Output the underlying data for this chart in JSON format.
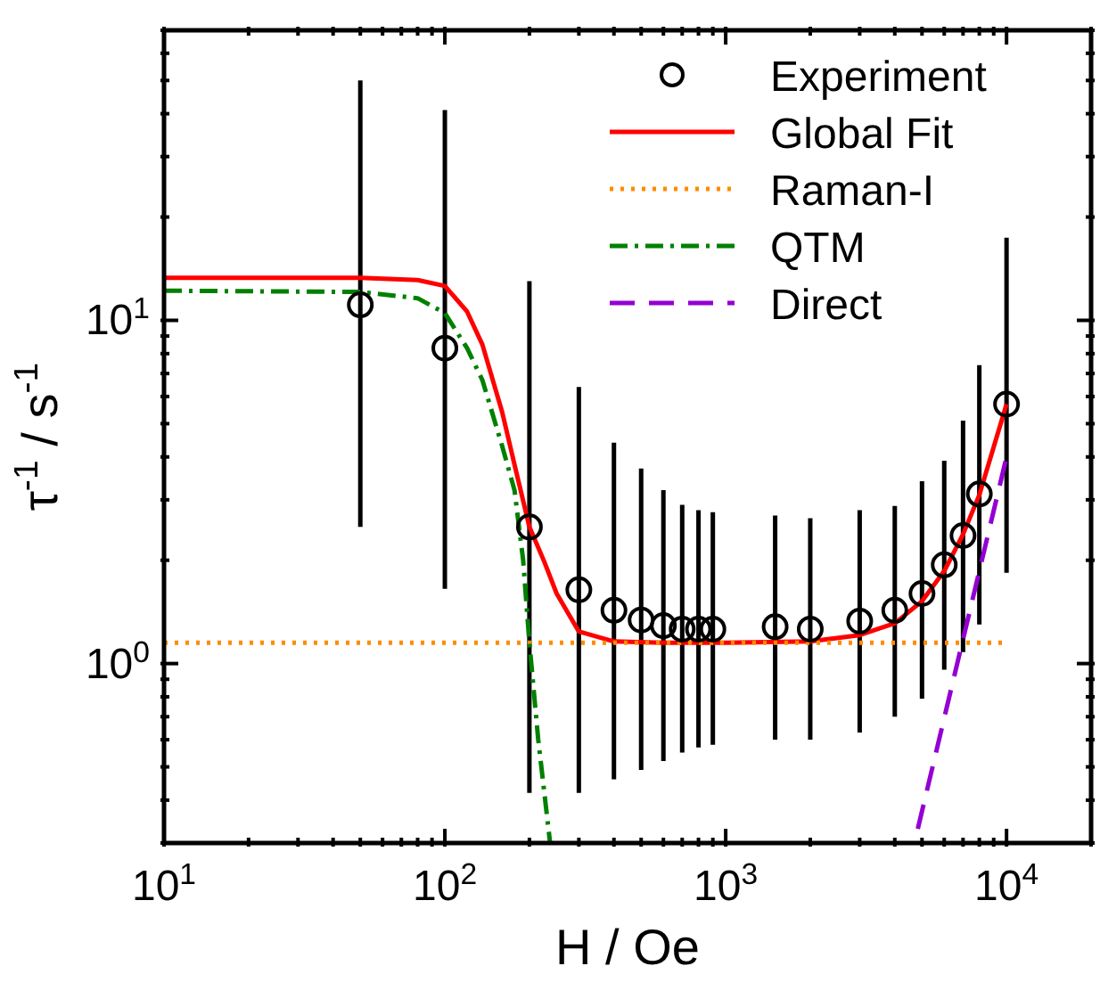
{
  "chart_data": {
    "type": "line",
    "xlabel": "H / Oe",
    "ylabel": "τ$^{-1}$ / s$^{-1}$",
    "log": "xy",
    "grid": false,
    "legend": "top right",
    "xlim": [
      10,
      20000
    ],
    "xticks": [
      {
        "value": 10,
        "label": "10$^{1}$"
      },
      {
        "value": 20,
        "label": null
      },
      {
        "value": 30,
        "label": null
      },
      {
        "value": 40,
        "label": null
      },
      {
        "value": 50,
        "label": null
      },
      {
        "value": 60,
        "label": null
      },
      {
        "value": 70,
        "label": null
      },
      {
        "value": 80,
        "label": null
      },
      {
        "value": 90,
        "label": null
      },
      {
        "value": 100,
        "label": "10$^{2}$"
      },
      {
        "value": 200,
        "label": null
      },
      {
        "value": 300,
        "label": null
      },
      {
        "value": 400,
        "label": null
      },
      {
        "value": 500,
        "label": null
      },
      {
        "value": 600,
        "label": null
      },
      {
        "value": 700,
        "label": null
      },
      {
        "value": 800,
        "label": null
      },
      {
        "value": 900,
        "label": null
      },
      {
        "value": 1000,
        "label": "10$^{3}$"
      },
      {
        "value": 2000,
        "label": null
      },
      {
        "value": 3000,
        "label": null
      },
      {
        "value": 4000,
        "label": null
      },
      {
        "value": 5000,
        "label": null
      },
      {
        "value": 6000,
        "label": null
      },
      {
        "value": 7000,
        "label": null
      },
      {
        "value": 8000,
        "label": null
      },
      {
        "value": 9000,
        "label": null
      },
      {
        "value": 10000,
        "label": "10$^{4}$"
      },
      {
        "value": 20000,
        "label": null
      }
    ],
    "ylim": [
      0.3,
      70
    ],
    "yticks": [
      {
        "value": 0.3,
        "label": null
      },
      {
        "value": 0.4,
        "label": null
      },
      {
        "value": 0.5,
        "label": null
      },
      {
        "value": 0.6,
        "label": null
      },
      {
        "value": 0.7,
        "label": null
      },
      {
        "value": 0.8,
        "label": null
      },
      {
        "value": 0.9,
        "label": null
      },
      {
        "value": 1,
        "label": "10$^{0}$"
      },
      {
        "value": 2,
        "label": null
      },
      {
        "value": 3,
        "label": null
      },
      {
        "value": 4,
        "label": null
      },
      {
        "value": 5,
        "label": null
      },
      {
        "value": 6,
        "label": null
      },
      {
        "value": 7,
        "label": null
      },
      {
        "value": 8,
        "label": null
      },
      {
        "value": 9,
        "label": null
      },
      {
        "value": 10,
        "label": "10$^{1}$"
      },
      {
        "value": 20,
        "label": null
      },
      {
        "value": 30,
        "label": null
      },
      {
        "value": 40,
        "label": null
      },
      {
        "value": 50,
        "label": null
      },
      {
        "value": 60,
        "label": null
      },
      {
        "value": 70,
        "label": null
      }
    ],
    "series": [
      {
        "name": "Experiment",
        "type": "scatter",
        "marker": "circle",
        "color": "#000000",
        "x": [
          50,
          100,
          200,
          300,
          400,
          500,
          600,
          700,
          800,
          900,
          1500,
          2000,
          3000,
          4000,
          5000,
          6000,
          7000,
          8000,
          10000
        ],
        "values": [
          11.1,
          8.3,
          2.5,
          1.64,
          1.43,
          1.34,
          1.29,
          1.26,
          1.26,
          1.26,
          1.28,
          1.26,
          1.33,
          1.43,
          1.6,
          1.94,
          2.36,
          3.12,
          5.7
        ],
        "errors": [
          [
            2.5,
            50
          ],
          [
            1.65,
            41
          ],
          [
            0.42,
            13
          ],
          [
            0.42,
            6.4
          ],
          [
            0.46,
            4.4
          ],
          [
            0.49,
            3.7
          ],
          [
            0.52,
            3.2
          ],
          [
            0.55,
            2.9
          ],
          [
            0.57,
            2.8
          ],
          [
            0.58,
            2.76
          ],
          [
            0.6,
            2.7
          ],
          [
            0.6,
            2.65
          ],
          [
            0.63,
            2.8
          ],
          [
            0.7,
            2.88
          ],
          [
            0.79,
            3.4
          ],
          [
            0.96,
            3.9
          ],
          [
            1.08,
            5.1
          ],
          [
            1.3,
            7.4
          ],
          [
            1.84,
            17.4
          ]
        ]
      },
      {
        "name": "Global Fit",
        "marker": "none",
        "line_style": "solid",
        "color": "#ff0000",
        "x": [
          10,
          50,
          80,
          100,
          120,
          136,
          160,
          177,
          200,
          226,
          250,
          300,
          400,
          600,
          1000,
          2000,
          3000,
          4000,
          5000,
          6000,
          7000,
          8000,
          10000
        ],
        "values": [
          13.3,
          13.3,
          13.1,
          12.6,
          10.6,
          8.5,
          5.4,
          3.8,
          2.5,
          1.98,
          1.6,
          1.24,
          1.16,
          1.15,
          1.15,
          1.16,
          1.21,
          1.31,
          1.52,
          1.86,
          2.38,
          3.1,
          5.7
        ]
      },
      {
        "name": "Raman-I",
        "marker": "none",
        "line_style": "dotted",
        "color": "#ff8c00",
        "x": [
          10,
          10000
        ],
        "values": [
          1.15,
          1.15
        ]
      },
      {
        "name": "QTM",
        "marker": "none",
        "line_style": "dashdot",
        "color": "#008000",
        "x": [
          10,
          50,
          80,
          100,
          120,
          136,
          160,
          177,
          190,
          200,
          215,
          237
        ],
        "values": [
          12.2,
          12.1,
          11.6,
          10.5,
          8.3,
          6.7,
          4.3,
          3.2,
          2.0,
          1.15,
          0.6,
          0.3
        ]
      },
      {
        "name": "Direct",
        "marker": "none",
        "line_style": "dashed",
        "color": "#9400d3",
        "x": [
          4830,
          10000
        ],
        "values": [
          0.33,
          4.0
        ]
      }
    ]
  }
}
